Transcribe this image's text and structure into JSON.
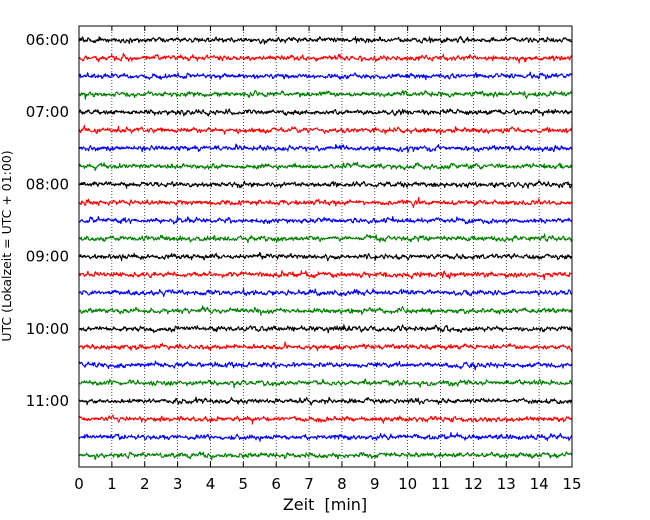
{
  "chart_data": {
    "type": "line",
    "title": "",
    "xlabel": "Zeit  [min]",
    "ylabel": "UTC (Lokalzeit = UTC + 01:00)",
    "xlim": [
      0,
      15
    ],
    "x_ticks": [
      0,
      1,
      2,
      3,
      4,
      5,
      6,
      7,
      8,
      9,
      10,
      11,
      12,
      13,
      14,
      15
    ],
    "grid": "vertical dotted",
    "trace_interval_min": 15,
    "row_times": [
      "06:00",
      "06:15",
      "06:30",
      "06:45",
      "07:00",
      "07:15",
      "07:30",
      "07:45",
      "08:00",
      "08:15",
      "08:30",
      "08:45",
      "09:00",
      "09:15",
      "09:30",
      "09:45",
      "10:00",
      "10:15",
      "10:30",
      "10:45",
      "11:00",
      "11:15",
      "11:30",
      "11:45"
    ],
    "y_tick_labels": [
      "06:00",
      "07:00",
      "08:00",
      "09:00",
      "10:00",
      "11:00"
    ],
    "colors": [
      "#000000",
      "#ff0000",
      "#0000ff",
      "#008000"
    ]
  }
}
